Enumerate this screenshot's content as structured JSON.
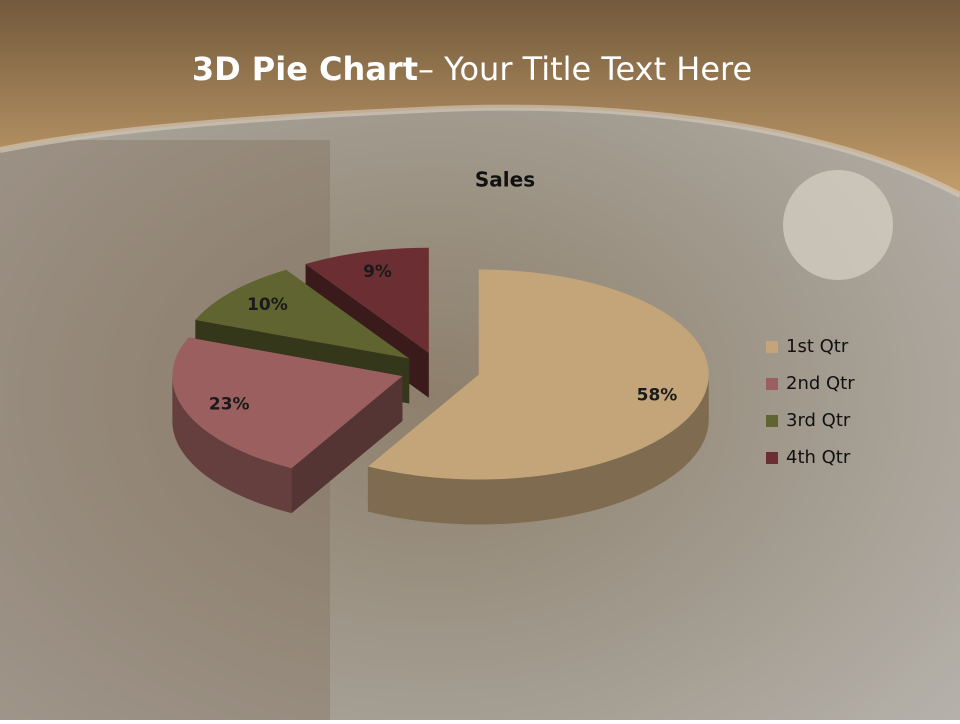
{
  "slide_title": {
    "bold": "3D Pie Chart",
    "rest": "– Your Title Text Here"
  },
  "chart_data": {
    "type": "pie3d",
    "title": "Sales",
    "categories": [
      "1st Qtr",
      "2nd Qtr",
      "3rd Qtr",
      "4th Qtr"
    ],
    "values": [
      58,
      23,
      10,
      9
    ],
    "value_labels": [
      "58%",
      "23%",
      "10%",
      "9%"
    ],
    "colors": [
      "#c4a57a",
      "#9b5f5f",
      "#5f6430",
      "#6b2f33"
    ],
    "legend": "right"
  }
}
